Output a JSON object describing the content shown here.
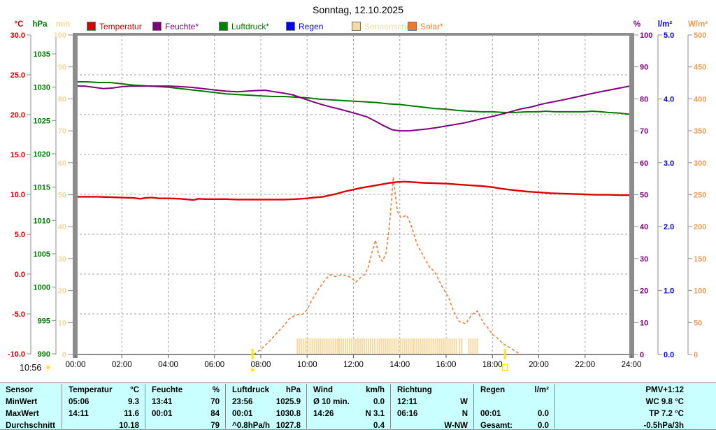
{
  "title": "Sonntag, 12.10.2025",
  "legend": [
    {
      "name": "temperatur",
      "label": "Temperatur",
      "color": "#dd0000",
      "text_color": "#d40000"
    },
    {
      "name": "feuchte",
      "label": "Feuchte*",
      "color": "#800080",
      "text_color": "#7a007a"
    },
    {
      "name": "luftdruck",
      "label": "Luftdruck*",
      "color": "#008000",
      "text_color": "#007a00"
    },
    {
      "name": "regen",
      "label": "Regen",
      "color": "#0000ee",
      "text_color": "#0000dd"
    },
    {
      "name": "sonnenschein",
      "label": "Sonnenschein",
      "color": "#f4d9a2",
      "text_color": "#efd99a"
    },
    {
      "name": "solar",
      "label": "Solar*",
      "color": "#f0782d",
      "text_color": "#f08030"
    }
  ],
  "footer": {
    "day_length": "10:56"
  },
  "chart_data": {
    "type": "line",
    "x_unit": "hours",
    "x_range": [
      0,
      24
    ],
    "x_ticks": [
      "00:00",
      "02:00",
      "04:00",
      "06:00",
      "08:00",
      "10:00",
      "12:00",
      "14:00",
      "16:00",
      "18:00",
      "20:00",
      "22:00",
      "24:00"
    ],
    "grid": true,
    "axes": {
      "temp": {
        "unit": "°C",
        "color": "#d40000",
        "min": -10,
        "max": 30,
        "ticks": [
          "30.0",
          "25.0",
          "20.0",
          "15.0",
          "10.0",
          "5.0",
          "0.0",
          "-5.0",
          "-10.0"
        ]
      },
      "pressure": {
        "unit": "hPa",
        "color": "#007a00",
        "min": 990,
        "max": 1035,
        "ticks": [
          "1035",
          "1030",
          "1025",
          "1020",
          "1015",
          "1010",
          "1005",
          "1000",
          "995",
          "990"
        ]
      },
      "sunshine": {
        "unit": "min",
        "color": "#efd99a",
        "min": 0,
        "max": 100,
        "ticks": [
          "100",
          "90",
          "80",
          "70",
          "60",
          "50",
          "40",
          "30",
          "20",
          "10",
          "0"
        ]
      },
      "humidity": {
        "unit": "%",
        "color": "#7a007a",
        "min": 0,
        "max": 100,
        "ticks": [
          "100",
          "90",
          "80",
          "70",
          "60",
          "50",
          "40",
          "30",
          "20",
          "10",
          "0"
        ]
      },
      "rain": {
        "unit": "l/m²",
        "color": "#0000dd",
        "min": 0,
        "max": 5,
        "ticks": [
          "5.0",
          "4.0",
          "3.0",
          "2.0",
          "1.0",
          "0.0"
        ]
      },
      "solar": {
        "unit": "W/m²",
        "color": "#f09a50",
        "min": 0,
        "max": 500,
        "ticks": [
          "500",
          "450",
          "400",
          "350",
          "300",
          "250",
          "200",
          "150",
          "100",
          "50",
          "0"
        ]
      }
    },
    "series": [
      {
        "name": "Regen",
        "axis": "rain",
        "color": "#0000cc",
        "style": "dotted",
        "width": 2,
        "points": [
          [
            0,
            0
          ],
          [
            24,
            0
          ]
        ]
      },
      {
        "name": "Solar",
        "axis": "solar",
        "color": "#f07f3c",
        "style": "dashed",
        "width": 1.6,
        "points": [
          [
            7.7,
            0
          ],
          [
            8,
            8
          ],
          [
            8.3,
            18
          ],
          [
            8.5,
            26
          ],
          [
            8.8,
            38
          ],
          [
            9,
            45
          ],
          [
            9.2,
            55
          ],
          [
            9.5,
            62
          ],
          [
            9.8,
            63
          ],
          [
            10,
            70
          ],
          [
            10.2,
            85
          ],
          [
            10.5,
            103
          ],
          [
            10.8,
            118
          ],
          [
            11,
            125
          ],
          [
            11.2,
            122
          ],
          [
            11.5,
            125
          ],
          [
            11.8,
            122
          ],
          [
            12,
            117
          ],
          [
            12.1,
            113
          ],
          [
            12.3,
            120
          ],
          [
            12.5,
            126
          ],
          [
            12.65,
            138
          ],
          [
            12.8,
            160
          ],
          [
            12.95,
            179
          ],
          [
            13.05,
            162
          ],
          [
            13.15,
            150
          ],
          [
            13.25,
            146
          ],
          [
            13.4,
            158
          ],
          [
            13.55,
            200
          ],
          [
            13.65,
            245
          ],
          [
            13.72,
            278
          ],
          [
            13.8,
            252
          ],
          [
            13.9,
            224
          ],
          [
            14.05,
            214
          ],
          [
            14.3,
            218
          ],
          [
            14.5,
            201
          ],
          [
            14.75,
            172
          ],
          [
            15,
            155
          ],
          [
            15.3,
            136
          ],
          [
            15.5,
            130
          ],
          [
            15.8,
            108
          ],
          [
            16.1,
            90
          ],
          [
            16.3,
            70
          ],
          [
            16.55,
            52
          ],
          [
            16.85,
            48
          ],
          [
            17.1,
            62
          ],
          [
            17.35,
            68
          ],
          [
            17.6,
            50
          ],
          [
            17.8,
            42
          ],
          [
            18,
            31
          ],
          [
            18.2,
            26
          ],
          [
            18.45,
            17
          ],
          [
            18.7,
            12
          ],
          [
            18.95,
            6
          ],
          [
            19.2,
            0
          ]
        ]
      },
      {
        "name": "Luftdruck",
        "axis": "pressure",
        "color": "#007a00",
        "style": "solid",
        "width": 2,
        "points": [
          [
            0,
            1030.8
          ],
          [
            0.5,
            1030.8
          ],
          [
            1,
            1030.7
          ],
          [
            1.5,
            1030.7
          ],
          [
            2,
            1030.5
          ],
          [
            2.5,
            1030.3
          ],
          [
            3,
            1030.2
          ],
          [
            3.5,
            1030.1
          ],
          [
            4,
            1030
          ],
          [
            4.5,
            1029.8
          ],
          [
            5,
            1029.6
          ],
          [
            5.5,
            1029.4
          ],
          [
            6,
            1029.2
          ],
          [
            6.5,
            1029
          ],
          [
            7,
            1028.9
          ],
          [
            7.5,
            1028.8
          ],
          [
            8,
            1028.7
          ],
          [
            8.5,
            1028.6
          ],
          [
            9,
            1028.6
          ],
          [
            9.5,
            1028.5
          ],
          [
            10,
            1028.4
          ],
          [
            10.5,
            1028.2
          ],
          [
            11,
            1028.1
          ],
          [
            11.5,
            1028
          ],
          [
            12,
            1027.9
          ],
          [
            12.5,
            1027.8
          ],
          [
            13,
            1027.7
          ],
          [
            13.5,
            1027.5
          ],
          [
            14,
            1027.4
          ],
          [
            14.5,
            1027.2
          ],
          [
            15,
            1027
          ],
          [
            15.5,
            1026.8
          ],
          [
            16,
            1026.7
          ],
          [
            16.5,
            1026.5
          ],
          [
            17,
            1026.4
          ],
          [
            17.5,
            1026.3
          ],
          [
            18,
            1026.3
          ],
          [
            18.5,
            1026.2
          ],
          [
            19,
            1026.2
          ],
          [
            19.5,
            1026.3
          ],
          [
            20,
            1026.3
          ],
          [
            20.3,
            1026.4
          ],
          [
            20.7,
            1026.3
          ],
          [
            21,
            1026.3
          ],
          [
            21.5,
            1026.3
          ],
          [
            22,
            1026.3
          ],
          [
            22.3,
            1026.4
          ],
          [
            22.7,
            1026.3
          ],
          [
            23,
            1026.2
          ],
          [
            23.5,
            1026.1
          ],
          [
            24,
            1025.9
          ]
        ]
      },
      {
        "name": "Feuchte",
        "axis": "humidity",
        "color": "#800080",
        "style": "solid",
        "width": 2,
        "points": [
          [
            0,
            84
          ],
          [
            0.4,
            84
          ],
          [
            0.8,
            83.6
          ],
          [
            1.2,
            83.2
          ],
          [
            1.6,
            83.4
          ],
          [
            2,
            83.8
          ],
          [
            2.4,
            84
          ],
          [
            3,
            84
          ],
          [
            3.5,
            84
          ],
          [
            4,
            84
          ],
          [
            4.4,
            83.9
          ],
          [
            5,
            83.6
          ],
          [
            5.5,
            83.2
          ],
          [
            6,
            82.8
          ],
          [
            6.5,
            82.4
          ],
          [
            7,
            82.2
          ],
          [
            7.4,
            82.4
          ],
          [
            7.8,
            82.6
          ],
          [
            8.2,
            82.7
          ],
          [
            8.6,
            82.2
          ],
          [
            9,
            81.8
          ],
          [
            9.4,
            81.2
          ],
          [
            9.8,
            80.2
          ],
          [
            10.2,
            79.2
          ],
          [
            10.6,
            78.3
          ],
          [
            11,
            77.5
          ],
          [
            11.4,
            76.8
          ],
          [
            11.8,
            76
          ],
          [
            12.2,
            75.2
          ],
          [
            12.6,
            74.3
          ],
          [
            13,
            72.8
          ],
          [
            13.3,
            71.6
          ],
          [
            13.68,
            70.3
          ],
          [
            14,
            70
          ],
          [
            14.4,
            70
          ],
          [
            14.8,
            70.3
          ],
          [
            15.2,
            70.6
          ],
          [
            15.6,
            71
          ],
          [
            16,
            71.5
          ],
          [
            16.4,
            72
          ],
          [
            16.8,
            72.5
          ],
          [
            17.2,
            73.2
          ],
          [
            17.6,
            73.9
          ],
          [
            18,
            74.5
          ],
          [
            18.4,
            75.2
          ],
          [
            18.8,
            76
          ],
          [
            19.2,
            76.8
          ],
          [
            19.7,
            77.5
          ],
          [
            20.1,
            78.3
          ],
          [
            20.5,
            78.9
          ],
          [
            21,
            79.6
          ],
          [
            21.5,
            80.4
          ],
          [
            22,
            81.2
          ],
          [
            22.5,
            82
          ],
          [
            23,
            82.7
          ],
          [
            23.5,
            83.4
          ],
          [
            24,
            84.1
          ]
        ]
      },
      {
        "name": "Temperatur",
        "axis": "temp",
        "color": "#dd0000",
        "style": "solid",
        "width": 2.4,
        "points": [
          [
            0,
            9.7
          ],
          [
            0.5,
            9.7
          ],
          [
            1,
            9.7
          ],
          [
            1.5,
            9.65
          ],
          [
            2,
            9.6
          ],
          [
            2.5,
            9.55
          ],
          [
            2.8,
            9.45
          ],
          [
            3,
            9.55
          ],
          [
            3.3,
            9.6
          ],
          [
            3.6,
            9.5
          ],
          [
            4,
            9.5
          ],
          [
            4.5,
            9.45
          ],
          [
            5.1,
            9.3
          ],
          [
            5.3,
            9.45
          ],
          [
            5.6,
            9.4
          ],
          [
            6,
            9.4
          ],
          [
            6.5,
            9.4
          ],
          [
            7,
            9.35
          ],
          [
            7.5,
            9.35
          ],
          [
            8,
            9.35
          ],
          [
            8.5,
            9.35
          ],
          [
            9,
            9.35
          ],
          [
            9.5,
            9.4
          ],
          [
            10,
            9.5
          ],
          [
            10.3,
            9.6
          ],
          [
            10.7,
            9.7
          ],
          [
            11,
            9.9
          ],
          [
            11.3,
            10.1
          ],
          [
            11.6,
            10.35
          ],
          [
            12,
            10.6
          ],
          [
            12.3,
            10.8
          ],
          [
            12.6,
            10.95
          ],
          [
            13,
            11.15
          ],
          [
            13.3,
            11.3
          ],
          [
            13.6,
            11.45
          ],
          [
            13.9,
            11.55
          ],
          [
            14.2,
            11.6
          ],
          [
            14.5,
            11.55
          ],
          [
            15,
            11.45
          ],
          [
            15.5,
            11.4
          ],
          [
            16,
            11.35
          ],
          [
            16.5,
            11.25
          ],
          [
            17,
            11.15
          ],
          [
            17.5,
            11.05
          ],
          [
            18,
            10.9
          ],
          [
            18.3,
            10.75
          ],
          [
            18.7,
            10.6
          ],
          [
            19,
            10.5
          ],
          [
            19.5,
            10.35
          ],
          [
            20,
            10.25
          ],
          [
            20.5,
            10.15
          ],
          [
            21,
            10.1
          ],
          [
            21.5,
            10.05
          ],
          [
            22,
            10
          ],
          [
            22.5,
            9.95
          ],
          [
            23,
            9.95
          ],
          [
            23.5,
            9.9
          ],
          [
            24,
            9.9
          ]
        ]
      }
    ],
    "sunshine_intervals": [
      [
        9.55,
        10.05
      ],
      [
        10.1,
        11.3
      ],
      [
        11.35,
        12.95
      ],
      [
        13.0,
        14.55
      ],
      [
        14.6,
        16.5
      ],
      [
        16.55,
        16.72
      ],
      [
        16.95,
        17.38
      ]
    ],
    "sun_markers": {
      "sunrise_hour": 7.64,
      "sunset_hour": 18.54
    }
  },
  "table": {
    "row_labels": [
      "Sensor",
      "MinWert",
      "MaxWert",
      "Durchschnitt"
    ],
    "columns": [
      {
        "header": "Temperatur",
        "unit": "°C",
        "rows": [
          [
            "05:06",
            "9.3"
          ],
          [
            "14:11",
            "11.6"
          ],
          [
            "",
            "10.18"
          ]
        ]
      },
      {
        "header": "Feuchte",
        "unit": "%",
        "rows": [
          [
            "13:41",
            "70"
          ],
          [
            "00:01",
            "84"
          ],
          [
            "",
            "79"
          ]
        ]
      },
      {
        "header": "Luftdruck",
        "unit": "hPa",
        "rows": [
          [
            "23:56",
            "1025.9"
          ],
          [
            "00:01",
            "1030.8"
          ],
          [
            "^0.8hPa/h",
            "1027.8"
          ]
        ]
      },
      {
        "header": "Wind",
        "unit": "km/h",
        "rows": [
          [
            "Ø 10 min.",
            "0.0"
          ],
          [
            "14:26",
            "N 3.1"
          ],
          [
            "",
            "0.4"
          ]
        ]
      },
      {
        "header": "Richtung",
        "unit": "",
        "rows": [
          [
            "12:11",
            "W"
          ],
          [
            "06:16",
            "N"
          ],
          [
            "",
            "W-NW"
          ]
        ]
      },
      {
        "header": "Regen",
        "unit": "l/m²",
        "rows": [
          [
            "",
            ""
          ],
          [
            "00:01",
            "0.0"
          ],
          [
            "Gesamt:",
            "0.0"
          ]
        ]
      },
      {
        "header": "PMV+1:12",
        "unit": "",
        "rows": [
          [
            "",
            "WC 9.8 °C"
          ],
          [
            "",
            "TP 7.2 °C"
          ],
          [
            "",
            "-0.5hPa/3h"
          ]
        ],
        "align": "right"
      }
    ]
  }
}
